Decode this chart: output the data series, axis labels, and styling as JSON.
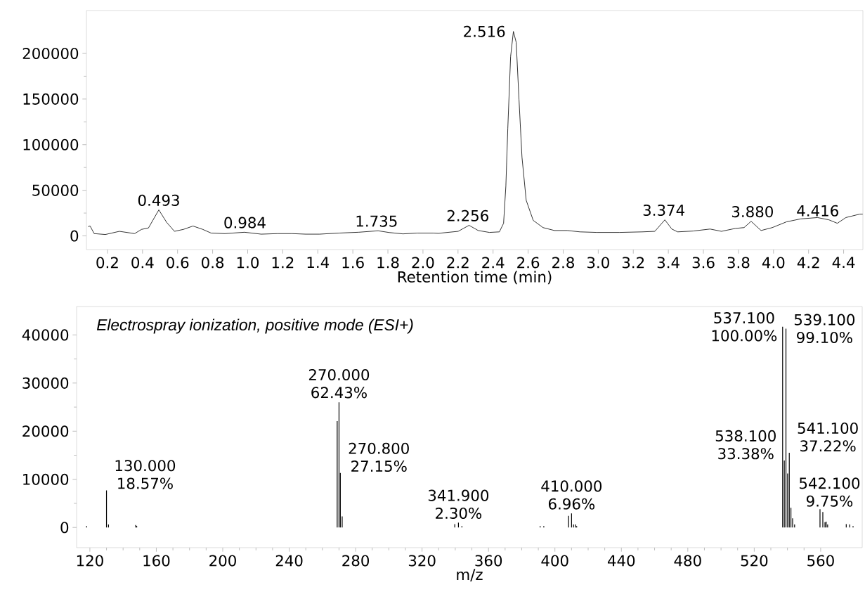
{
  "chart_data": [
    {
      "type": "line",
      "xlabel": "Retention time (min)",
      "color": "#000000",
      "x": [
        0.09,
        0.101,
        0.124,
        0.188,
        0.268,
        0.355,
        0.394,
        0.434,
        0.493,
        0.537,
        0.582,
        0.633,
        0.688,
        0.744,
        0.791,
        0.87,
        0.982,
        1.077,
        1.172,
        1.252,
        1.331,
        1.41,
        1.522,
        1.633,
        1.744,
        1.807,
        1.886,
        1.966,
        2.061,
        2.088,
        2.201,
        2.263,
        2.315,
        2.379,
        2.436,
        2.46,
        2.473,
        2.484,
        2.5,
        2.516,
        2.532,
        2.548,
        2.565,
        2.589,
        2.629,
        2.685,
        2.75,
        2.823,
        2.896,
        2.993,
        3.122,
        3.251,
        3.323,
        3.38,
        3.42,
        3.453,
        3.541,
        3.638,
        3.703,
        3.783,
        3.832,
        3.872,
        3.929,
        3.993,
        4.074,
        4.154,
        4.251,
        4.316,
        4.364,
        4.413,
        4.493,
        4.509
      ],
      "values": [
        10200,
        10800,
        2500,
        1500,
        5000,
        2500,
        7100,
        8700,
        28500,
        15000,
        5000,
        7100,
        10800,
        7100,
        3100,
        2500,
        4000,
        1900,
        2500,
        2500,
        1900,
        1900,
        3100,
        4000,
        5600,
        3700,
        2200,
        3100,
        3100,
        2800,
        5000,
        11600,
        5900,
        3800,
        4400,
        13800,
        54700,
        117700,
        196400,
        224100,
        212100,
        149200,
        86200,
        39000,
        17000,
        9100,
        5900,
        5900,
        4400,
        3800,
        3800,
        4400,
        5000,
        17600,
        7500,
        4400,
        5300,
        7500,
        5000,
        8200,
        9100,
        16000,
        5900,
        9100,
        15400,
        18600,
        20100,
        17600,
        13800,
        20100,
        23900,
        23900
      ],
      "xlim": [
        0.08,
        4.51
      ],
      "ylim": [
        -15000,
        247000
      ],
      "xticks": [
        0.2,
        0.4,
        0.6,
        0.8,
        {
          "value": 1,
          "label": "1.0"
        },
        1.2,
        1.4,
        1.6,
        1.8,
        {
          "value": 2,
          "label": "2.0"
        },
        2.2,
        2.4,
        2.6,
        2.8,
        {
          "value": 3,
          "label": "3.0"
        },
        3.2,
        3.4,
        3.6,
        3.8,
        {
          "value": 4,
          "label": "4.0"
        },
        4.2,
        4.4
      ],
      "yticks": [
        0,
        50000,
        100000,
        150000,
        200000
      ],
      "annotations": [
        {
          "text": "0.493",
          "x": 0.493,
          "y": 28500
        },
        {
          "text": "0.984",
          "x": 0.984,
          "y": 4000
        },
        {
          "text": "1.735",
          "x": 1.735,
          "y": 5600
        },
        {
          "text": "2.256",
          "x": 2.256,
          "y": 11600
        },
        {
          "text": "2.516",
          "x": 2.516,
          "y": 224100
        },
        {
          "text": "3.374",
          "x": 3.374,
          "y": 17600
        },
        {
          "text": "3.880",
          "x": 3.88,
          "y": 16000
        },
        {
          "text": "4.416",
          "x": 4.416,
          "y": 20100
        }
      ]
    },
    {
      "type": "bar",
      "xlabel": "m/z",
      "color": "#000000",
      "x": [
        118.0,
        130.0,
        131.2,
        147.6,
        148.2,
        268.9,
        270.0,
        270.8,
        271.9,
        339.7,
        341.9,
        344.0,
        391.1,
        393.3,
        408.2,
        410.0,
        411.2,
        412.4,
        413.1,
        537.1,
        538.1,
        539.1,
        540.1,
        541.1,
        542.1,
        543.1,
        544.3,
        559.6,
        561.3,
        562.6,
        563.3,
        564.2,
        575.4,
        577.5,
        579.5
      ],
      "values": [
        300,
        7700,
        600,
        500,
        300,
        22100,
        26000,
        11300,
        2300,
        700,
        1000,
        300,
        300,
        300,
        2400,
        2900,
        600,
        600,
        300,
        41700,
        13900,
        41300,
        11200,
        15500,
        4100,
        1900,
        600,
        3800,
        3200,
        1100,
        1200,
        600,
        700,
        600,
        300
      ],
      "xlim": [
        112,
        585
      ],
      "ylim": [
        -4200,
        45900
      ],
      "xticks": [
        120,
        160,
        200,
        240,
        280,
        320,
        360,
        400,
        440,
        480,
        520,
        560
      ],
      "yticks": [
        0,
        10000,
        20000,
        30000,
        40000
      ],
      "annotations": [
        "Electrospray ionization, positive mode (ESI+)",
        {
          "text": "130.000 18.57%",
          "x": 130.0,
          "y": 7740
        },
        {
          "text": "270.000 62.43%",
          "x": 270.0,
          "y": 26030
        },
        {
          "text": "270.800 27.15%",
          "x": 270.8,
          "y": 11320
        },
        {
          "text": "341.900 2.30%",
          "x": 341.9,
          "y": 960
        },
        {
          "text": "410.000 6.96%",
          "x": 410.0,
          "y": 2900
        },
        {
          "text": "537.100 100.00%",
          "x": 537.1,
          "y": 41700
        },
        {
          "text": "538.100 33.38%",
          "x": 538.1,
          "y": 13920
        },
        {
          "text": "539.100 99.10%",
          "x": 539.1,
          "y": 41320
        },
        {
          "text": "541.100 37.22%",
          "x": 541.1,
          "y": 15520
        },
        {
          "text": "542.100 9.75%",
          "x": 542.1,
          "y": 4070
        }
      ]
    }
  ]
}
